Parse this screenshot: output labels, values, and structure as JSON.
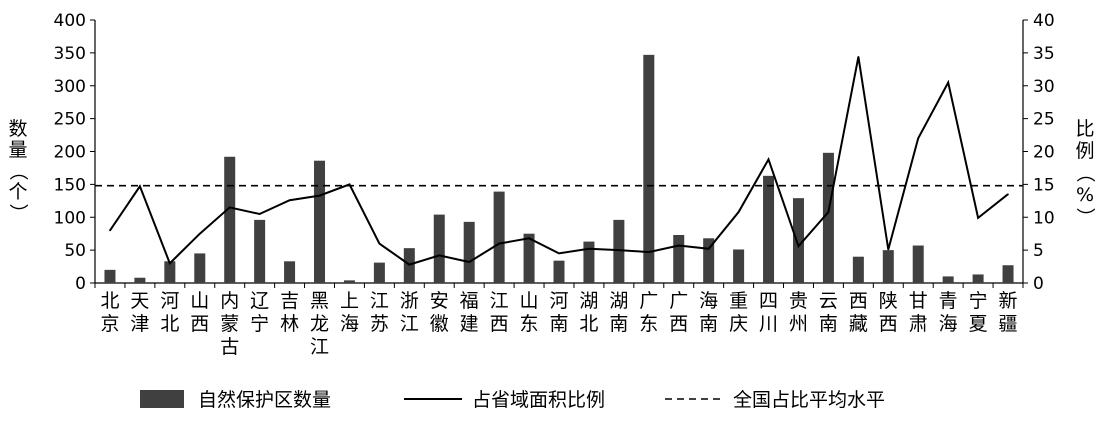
{
  "chart_data": {
    "type": "bar",
    "categories": [
      [
        "北",
        "京"
      ],
      [
        "天",
        "津"
      ],
      [
        "河",
        "北"
      ],
      [
        "山",
        "西"
      ],
      [
        "内",
        "蒙",
        "古"
      ],
      [
        "辽",
        "宁"
      ],
      [
        "吉",
        "林"
      ],
      [
        "黑",
        "龙",
        "江"
      ],
      [
        "上",
        "海"
      ],
      [
        "江",
        "苏"
      ],
      [
        "浙",
        "江"
      ],
      [
        "安",
        "徽"
      ],
      [
        "福",
        "建"
      ],
      [
        "江",
        "西"
      ],
      [
        "山",
        "东"
      ],
      [
        "河",
        "南"
      ],
      [
        "湖",
        "北"
      ],
      [
        "湖",
        "南"
      ],
      [
        "广",
        "东"
      ],
      [
        "广",
        "西"
      ],
      [
        "海",
        "南"
      ],
      [
        "重",
        "庆"
      ],
      [
        "四",
        "川"
      ],
      [
        "贵",
        "州"
      ],
      [
        "云",
        "南"
      ],
      [
        "西",
        "藏"
      ],
      [
        "陕",
        "西"
      ],
      [
        "甘",
        "肃"
      ],
      [
        "青",
        "海"
      ],
      [
        "宁",
        "夏"
      ],
      [
        "新",
        "疆"
      ]
    ],
    "series": [
      {
        "name": "自然保护区数量",
        "type": "bar",
        "axis": "left",
        "color": "#404040",
        "values": [
          20,
          8,
          33,
          45,
          192,
          96,
          33,
          186,
          4,
          31,
          53,
          104,
          93,
          139,
          75,
          34,
          63,
          96,
          347,
          73,
          68,
          51,
          163,
          129,
          198,
          40,
          50,
          57,
          10,
          13,
          27
        ]
      },
      {
        "name": "占省域面积比例",
        "type": "line",
        "axis": "right",
        "color": "#000000",
        "values": [
          8.0,
          14.7,
          3.0,
          7.5,
          11.5,
          10.5,
          12.6,
          13.3,
          15.0,
          6.0,
          2.8,
          4.2,
          3.2,
          6.0,
          6.8,
          4.5,
          5.2,
          5.0,
          4.7,
          5.7,
          5.2,
          10.8,
          18.8,
          5.6,
          10.8,
          34.4,
          5.1,
          22.0,
          30.5,
          9.9,
          13.5
        ]
      },
      {
        "name": "全国占比平均水平",
        "type": "reference",
        "axis": "right",
        "color": "#000000",
        "value": 14.8
      }
    ],
    "left_axis": {
      "label": [
        "数",
        "量",
        "（",
        "个",
        "）"
      ],
      "ylim": [
        0,
        400
      ],
      "ticks": [
        "0",
        "50",
        "100",
        "150",
        "200",
        "250",
        "300",
        "350",
        "400"
      ]
    },
    "right_axis": {
      "label": [
        "比",
        "例",
        "（",
        "%",
        "）"
      ],
      "ylim": [
        0,
        40
      ],
      "ticks": [
        "0",
        "5",
        "10",
        "15",
        "20",
        "25",
        "30",
        "35",
        "40"
      ]
    },
    "grid": false,
    "legend_position": "bottom"
  }
}
